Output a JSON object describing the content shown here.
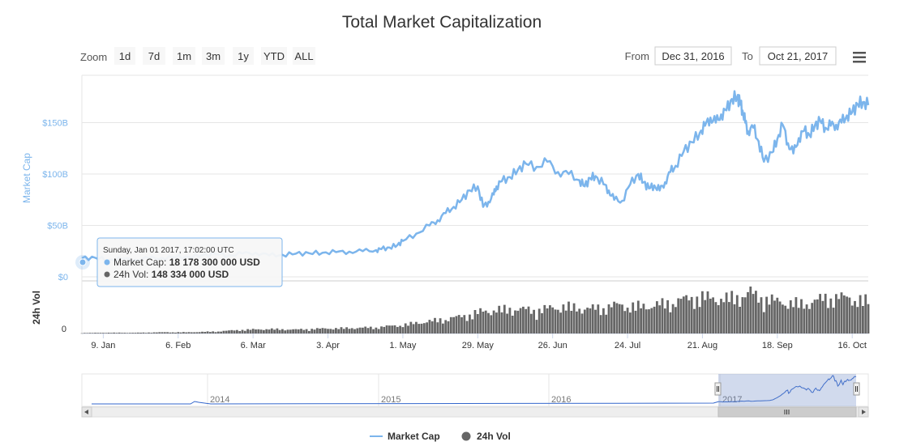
{
  "chart_data": {
    "type": "line",
    "title": "Total Market Capitalization",
    "zoom": {
      "label": "Zoom",
      "buttons": [
        "1d",
        "7d",
        "1m",
        "3m",
        "1y",
        "YTD",
        "ALL"
      ]
    },
    "range": {
      "from_label": "From",
      "from_value": "Dec 31, 2016",
      "to_label": "To",
      "to_value": "Oct 21, 2017"
    },
    "ylabel": "Market Cap",
    "ylabel2": "24h Vol",
    "y_ticks": [
      "$0",
      "$50B",
      "$100B",
      "$150B"
    ],
    "ylim": [
      0,
      200
    ],
    "y_unit": "B USD",
    "y2_ticks": [
      "0"
    ],
    "x_ticks": [
      "9. Jan",
      "6. Feb",
      "6. Mar",
      "3. Apr",
      "1. May",
      "29. May",
      "26. Jun",
      "24. Jul",
      "21. Aug",
      "18. Sep",
      "16. Oct"
    ],
    "x_range_days": [
      0,
      294
    ],
    "x_tick_days": [
      8,
      36,
      64,
      92,
      120,
      148,
      176,
      204,
      232,
      260,
      288
    ],
    "navigator_ticks": [
      "2014",
      "2015",
      "2016",
      "2017"
    ],
    "series": [
      {
        "name": "Market Cap",
        "color": "#7cb5ec",
        "day": [
          0,
          5,
          10,
          15,
          20,
          25,
          30,
          35,
          40,
          45,
          50,
          55,
          60,
          65,
          70,
          75,
          80,
          85,
          90,
          95,
          100,
          105,
          110,
          112,
          115,
          118,
          120,
          125,
          130,
          133,
          136,
          139,
          142,
          145,
          148,
          150,
          152,
          154,
          155,
          157,
          160,
          163,
          166,
          170,
          174,
          178,
          182,
          186,
          188,
          190,
          192,
          195,
          197,
          199,
          202,
          205,
          208,
          210,
          212,
          214,
          216,
          218,
          220,
          222,
          225,
          228,
          231,
          233,
          235,
          237,
          239,
          241,
          243,
          245,
          246,
          247,
          248,
          249,
          251,
          253,
          255,
          258,
          260,
          262,
          264,
          266,
          268,
          270,
          272,
          274,
          276,
          278,
          280,
          282,
          284,
          286,
          288,
          290,
          292,
          294
        ],
        "values": [
          18.2,
          18.5,
          16.5,
          17.5,
          16.8,
          18,
          18.5,
          19,
          19.5,
          21,
          22,
          21,
          22.5,
          23.5,
          20.8,
          21.5,
          22.5,
          23,
          23.5,
          24,
          24.5,
          25,
          26,
          27,
          28.5,
          31,
          35,
          42,
          50,
          55,
          62,
          68,
          75,
          84,
          88,
          68,
          73,
          80,
          88,
          93,
          97,
          104,
          110,
          107,
          112,
          102,
          100,
          94,
          88,
          96,
          98,
          90,
          84,
          75,
          74,
          90,
          100,
          92,
          86,
          89,
          84,
          92,
          102,
          108,
          122,
          131,
          140,
          147,
          155,
          150,
          158,
          162,
          173,
          175,
          170,
          162,
          150,
          142,
          145,
          132,
          112,
          121,
          134,
          148,
          130,
          120,
          135,
          142,
          138,
          147,
          152,
          145,
          147,
          148,
          150,
          157,
          160,
          168,
          170,
          167,
          160,
          171,
          167
        ]
      },
      {
        "name": "24h Vol",
        "color": "#666666",
        "day": [
          0,
          10,
          20,
          30,
          40,
          50,
          60,
          70,
          80,
          90,
          100,
          110,
          120,
          130,
          140,
          150,
          160,
          170,
          180,
          190,
          200,
          210,
          220,
          230,
          240,
          250,
          260,
          270,
          280,
          290,
          294
        ],
        "values": [
          0.2,
          0.3,
          0.3,
          0.5,
          0.5,
          0.8,
          1.5,
          1.8,
          1.6,
          2,
          2.2,
          2.5,
          3.5,
          5,
          6.5,
          9,
          10,
          9.5,
          11,
          10,
          11.5,
          11,
          12.5,
          15,
          14,
          16,
          13,
          12,
          15,
          14,
          13
        ]
      }
    ],
    "tooltip": {
      "date": "Sunday, Jan 01 2017, 17:02:00 UTC",
      "cap_label": "Market Cap:",
      "cap_value": "18 178 300 000 USD",
      "vol_label": "24h Vol:",
      "vol_value": "148 334 000 USD"
    },
    "legend": [
      "Market Cap",
      "24h Vol"
    ]
  },
  "icons": {
    "menu": "hamburger-menu-icon"
  }
}
